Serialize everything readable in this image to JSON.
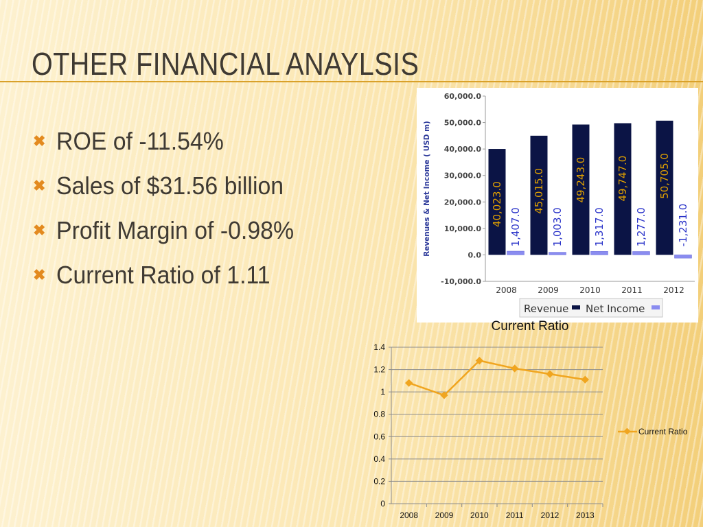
{
  "slide": {
    "title": "Other Financial Anaylsis",
    "bullet_icon": "x-mark-icon",
    "bullets": [
      "ROE of -11.54%",
      "Sales of $31.56 billion",
      "Profit Margin of -0.98%",
      "Current Ratio of 1.11"
    ]
  },
  "colors": {
    "accent": "#d9a12a",
    "bullet": "#e38a1f",
    "revenue": "#0b1445",
    "net_income": "#8a8cf0",
    "data_label": "#e0a000",
    "data_label_ni": "#2a33c9",
    "line": "#f0a51f"
  },
  "chart_data": [
    {
      "type": "bar",
      "ylabel": "Revenues & Net Income ( USD m)",
      "categories": [
        "2008",
        "2009",
        "2010",
        "2011",
        "2012"
      ],
      "series": [
        {
          "name": "Revenue",
          "values": [
            40023.0,
            45015.0,
            49243.0,
            49747.0,
            50705.0
          ],
          "labels": [
            "40,023.0",
            "45,015.0",
            "49,243.0",
            "49,747.0",
            "50,705.0"
          ]
        },
        {
          "name": "Net Income",
          "values": [
            1407.0,
            1003.0,
            1317.0,
            1277.0,
            -1231.0
          ],
          "labels": [
            "1,407.0",
            "1,003.0",
            "1,317.0",
            "1,277.0",
            "-1,231.0"
          ]
        }
      ],
      "ylim": [
        -10000,
        60000
      ],
      "yticks": [
        -10000,
        0,
        10000,
        20000,
        30000,
        40000,
        50000,
        60000
      ],
      "ytick_labels": [
        "-10,000.0",
        "0.0",
        "10,000.0",
        "20,000.0",
        "30,000.0",
        "40,000.0",
        "50,000.0",
        "60,000.0"
      ],
      "legend": "bottom",
      "grid": false
    },
    {
      "type": "line",
      "title": "Current Ratio",
      "categories": [
        "2008",
        "2009",
        "2010",
        "2011",
        "2012",
        "2013"
      ],
      "series": [
        {
          "name": "Current Ratio",
          "values": [
            1.08,
            0.97,
            1.28,
            1.21,
            1.16,
            1.11
          ]
        }
      ],
      "ylim": [
        0,
        1.4
      ],
      "yticks": [
        0,
        0.2,
        0.4,
        0.6,
        0.8,
        1,
        1.2,
        1.4
      ],
      "ytick_labels": [
        "0",
        "0.2",
        "0.4",
        "0.6",
        "0.8",
        "1",
        "1.2",
        "1.4"
      ],
      "legend": "right",
      "grid": true
    }
  ]
}
